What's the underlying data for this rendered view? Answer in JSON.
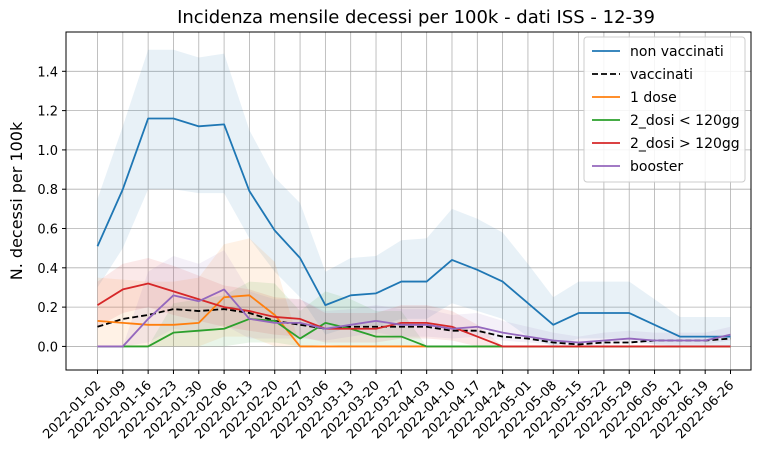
{
  "chart_data": {
    "type": "line",
    "title": "Incidenza mensile decessi per 100k - dati ISS - 12-39",
    "xlabel": "",
    "ylabel": "N. decessi per 100k",
    "ylim": [
      -0.12,
      1.6
    ],
    "yticks": [
      "0.0",
      "0.2",
      "0.4",
      "0.6",
      "0.8",
      "1.0",
      "1.2",
      "1.4"
    ],
    "grid": true,
    "legend_position": "top-right",
    "categories": [
      "2022-01-02",
      "2022-01-09",
      "2022-01-16",
      "2022-01-23",
      "2022-01-30",
      "2022-02-06",
      "2022-02-13",
      "2022-02-20",
      "2022-02-27",
      "2022-03-06",
      "2022-03-13",
      "2022-03-20",
      "2022-03-27",
      "2022-04-03",
      "2022-04-10",
      "2022-04-17",
      "2022-04-24",
      "2022-05-01",
      "2022-05-08",
      "2022-05-15",
      "2022-05-22",
      "2022-05-29",
      "2022-06-05",
      "2022-06-12",
      "2022-06-19",
      "2022-06-26"
    ],
    "series": [
      {
        "name": "non vaccinati",
        "color": "#1f77b4",
        "dash": false,
        "values": [
          0.51,
          0.8,
          1.16,
          1.16,
          1.12,
          1.13,
          0.79,
          0.59,
          0.45,
          0.21,
          0.26,
          0.27,
          0.33,
          0.33,
          0.44,
          0.39,
          0.33,
          0.22,
          0.11,
          0.17,
          0.17,
          0.17,
          0.11,
          0.05,
          0.05,
          0.05
        ],
        "band_low": [
          0.3,
          0.5,
          0.8,
          0.8,
          0.78,
          0.78,
          0.55,
          0.38,
          0.25,
          0.06,
          0.1,
          0.1,
          0.14,
          0.14,
          0.22,
          0.18,
          0.14,
          0.05,
          0.0,
          0.04,
          0.04,
          0.04,
          0.01,
          0.0,
          0.0,
          0.0
        ],
        "band_high": [
          0.75,
          1.12,
          1.51,
          1.51,
          1.47,
          1.49,
          1.1,
          0.86,
          0.73,
          0.38,
          0.45,
          0.46,
          0.54,
          0.55,
          0.7,
          0.65,
          0.58,
          0.42,
          0.25,
          0.33,
          0.33,
          0.33,
          0.24,
          0.15,
          0.15,
          0.15
        ]
      },
      {
        "name": "vaccinati",
        "color": "#000000",
        "dash": true,
        "values": [
          0.1,
          0.14,
          0.16,
          0.19,
          0.18,
          0.19,
          0.17,
          0.13,
          0.11,
          0.09,
          0.1,
          0.1,
          0.1,
          0.1,
          0.08,
          0.08,
          0.05,
          0.04,
          0.02,
          0.01,
          0.02,
          0.02,
          0.03,
          0.03,
          0.03,
          0.04
        ]
      },
      {
        "name": "1 dose",
        "color": "#ff7f0e",
        "dash": false,
        "values": [
          0.13,
          0.12,
          0.11,
          0.11,
          0.12,
          0.25,
          0.26,
          0.16,
          0.0,
          0.0,
          0.0,
          0.0,
          0.0,
          0.0,
          0.0,
          0.0,
          0.0,
          0.0,
          0.0,
          0.0,
          0.0,
          0.0,
          0.0,
          0.0,
          0.0,
          0.0
        ],
        "band_low": [
          0.0,
          0.0,
          0.0,
          0.0,
          0.0,
          0.05,
          0.05,
          0.0,
          0.0,
          0.0,
          0.0,
          0.0,
          0.0,
          0.0,
          0.0,
          0.0,
          0.0,
          0.0,
          0.0,
          0.0,
          0.0,
          0.0,
          0.0,
          0.0,
          0.0,
          0.0
        ],
        "band_high": [
          0.35,
          0.34,
          0.33,
          0.33,
          0.35,
          0.52,
          0.55,
          0.43,
          0.0,
          0.0,
          0.0,
          0.0,
          0.0,
          0.0,
          0.0,
          0.0,
          0.0,
          0.0,
          0.0,
          0.0,
          0.0,
          0.0,
          0.0,
          0.0,
          0.0,
          0.0
        ]
      },
      {
        "name": "2_dosi < 120gg",
        "color": "#2ca02c",
        "dash": false,
        "values": [
          0.0,
          0.0,
          0.0,
          0.07,
          0.08,
          0.09,
          0.14,
          0.13,
          0.04,
          0.12,
          0.09,
          0.05,
          0.05,
          0.0,
          0.0,
          0.0,
          0.0,
          0.0,
          0.0,
          0.0,
          0.0,
          0.0,
          0.0,
          0.0,
          0.0,
          0.0
        ],
        "band_low": [
          0.0,
          0.0,
          0.0,
          0.0,
          0.0,
          0.0,
          0.02,
          0.02,
          0.0,
          0.01,
          0.0,
          0.0,
          0.0,
          0.0,
          0.0,
          0.0,
          0.0,
          0.0,
          0.0,
          0.0,
          0.0,
          0.0,
          0.0,
          0.0,
          0.0,
          0.0
        ],
        "band_high": [
          0.0,
          0.0,
          0.0,
          0.22,
          0.24,
          0.26,
          0.33,
          0.32,
          0.18,
          0.28,
          0.24,
          0.18,
          0.18,
          0.0,
          0.0,
          0.0,
          0.0,
          0.0,
          0.0,
          0.0,
          0.0,
          0.0,
          0.0,
          0.0,
          0.0,
          0.0
        ]
      },
      {
        "name": "2_dosi > 120gg",
        "color": "#d62728",
        "dash": false,
        "values": [
          0.21,
          0.29,
          0.32,
          0.28,
          0.24,
          0.2,
          0.18,
          0.15,
          0.14,
          0.09,
          0.09,
          0.09,
          0.12,
          0.12,
          0.1,
          0.05,
          0.0,
          0.0,
          0.0,
          0.0,
          0.0,
          0.0,
          0.0,
          0.0,
          0.0,
          0.0
        ],
        "band_low": [
          0.1,
          0.17,
          0.2,
          0.16,
          0.13,
          0.1,
          0.08,
          0.06,
          0.05,
          0.02,
          0.02,
          0.02,
          0.04,
          0.04,
          0.03,
          0.0,
          0.0,
          0.0,
          0.0,
          0.0,
          0.0,
          0.0,
          0.0,
          0.0,
          0.0,
          0.0
        ],
        "band_high": [
          0.33,
          0.42,
          0.45,
          0.41,
          0.36,
          0.31,
          0.29,
          0.25,
          0.24,
          0.17,
          0.17,
          0.17,
          0.21,
          0.21,
          0.18,
          0.11,
          0.0,
          0.0,
          0.0,
          0.0,
          0.0,
          0.0,
          0.0,
          0.0,
          0.0,
          0.0
        ]
      },
      {
        "name": "booster",
        "color": "#9467bd",
        "dash": false,
        "values": [
          0.0,
          0.0,
          0.14,
          0.26,
          0.23,
          0.29,
          0.14,
          0.12,
          0.12,
          0.09,
          0.11,
          0.13,
          0.11,
          0.11,
          0.09,
          0.1,
          0.07,
          0.05,
          0.03,
          0.02,
          0.03,
          0.04,
          0.03,
          0.03,
          0.03,
          0.06
        ],
        "band_low": [
          0.0,
          0.0,
          0.02,
          0.09,
          0.07,
          0.11,
          0.04,
          0.04,
          0.04,
          0.03,
          0.05,
          0.07,
          0.05,
          0.05,
          0.04,
          0.05,
          0.03,
          0.02,
          0.01,
          0.0,
          0.01,
          0.02,
          0.01,
          0.01,
          0.01,
          0.03
        ],
        "band_high": [
          0.0,
          0.0,
          0.38,
          0.46,
          0.42,
          0.49,
          0.28,
          0.24,
          0.24,
          0.18,
          0.19,
          0.21,
          0.19,
          0.19,
          0.16,
          0.17,
          0.13,
          0.1,
          0.07,
          0.05,
          0.07,
          0.08,
          0.07,
          0.07,
          0.07,
          0.1
        ]
      }
    ]
  }
}
